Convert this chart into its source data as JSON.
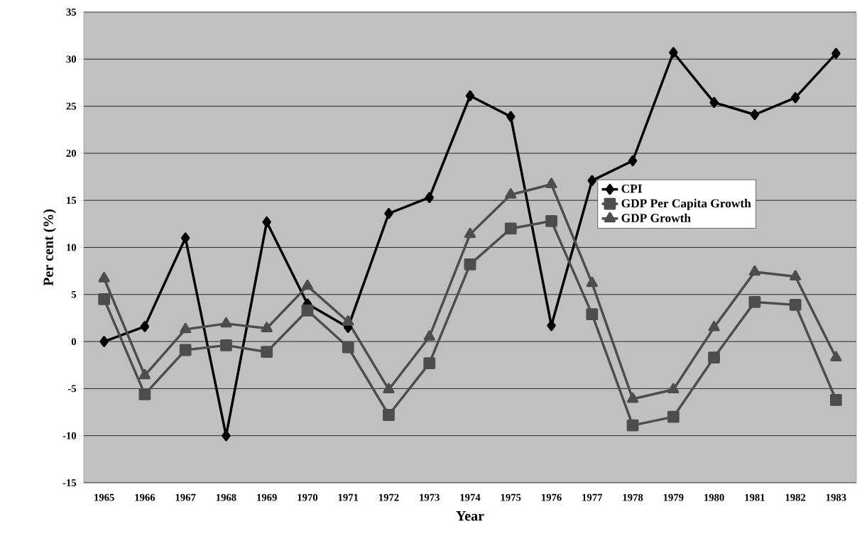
{
  "chart_data": {
    "type": "line",
    "xlabel": "Year",
    "ylabel": "Per cent (%)",
    "categories": [
      "1965",
      "1966",
      "1967",
      "1968",
      "1969",
      "1970",
      "1971",
      "1972",
      "1973",
      "1974",
      "1975",
      "1976",
      "1977",
      "1978",
      "1979",
      "1980",
      "1981",
      "1982",
      "1983"
    ],
    "series": [
      {
        "name": "CPI",
        "color": "#000000",
        "marker": "diamond",
        "values": [
          0,
          1.6,
          11.0,
          -10.0,
          12.7,
          4.0,
          1.5,
          13.6,
          15.3,
          26.1,
          23.9,
          1.7,
          17.1,
          19.2,
          30.7,
          25.4,
          24.1,
          25.9,
          30.6
        ]
      },
      {
        "name": "GDP Per Capita Growth",
        "color": "#4d4d4d",
        "marker": "square",
        "values": [
          4.5,
          -5.6,
          -0.9,
          -0.4,
          -1.1,
          3.3,
          -0.6,
          -7.8,
          -2.3,
          8.2,
          12.0,
          12.8,
          2.9,
          -8.9,
          -8.0,
          -1.7,
          4.2,
          3.9,
          -6.2
        ]
      },
      {
        "name": "GDP Growth",
        "color": "#4d4d4d",
        "marker": "triangle",
        "values": [
          6.7,
          -3.6,
          1.3,
          1.9,
          1.4,
          5.9,
          2.1,
          -5.1,
          0.5,
          11.4,
          15.6,
          16.7,
          6.2,
          -6.1,
          -5.1,
          1.5,
          7.4,
          6.9,
          -1.7
        ]
      }
    ],
    "ylim": [
      -15,
      35
    ],
    "yticks": [
      -15,
      -10,
      -5,
      0,
      5,
      10,
      15,
      20,
      25,
      30,
      35
    ],
    "grid": "y",
    "legend": "right",
    "line_style": "solid"
  }
}
